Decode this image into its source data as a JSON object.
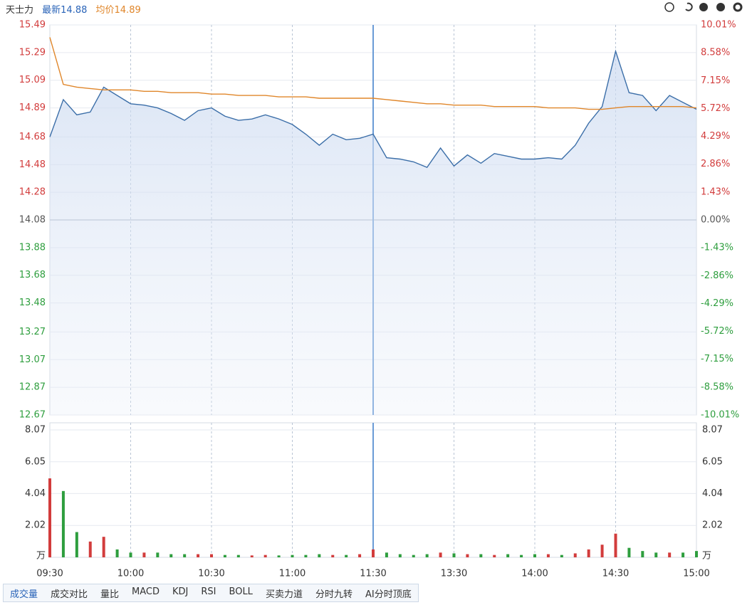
{
  "header": {
    "name": "天士力",
    "latest": "最新14.88",
    "average": "均价14.89"
  },
  "tabs": [
    "成交量",
    "成交对比",
    "量比",
    "MACD",
    "KDJ",
    "RSI",
    "BOLL",
    "买卖力道",
    "分时九转",
    "AI分时顶底"
  ],
  "chart_data": {
    "type": "line",
    "categories": [
      "09:30",
      null,
      null,
      null,
      null,
      null,
      "10:00",
      null,
      null,
      null,
      null,
      null,
      "10:30",
      null,
      null,
      null,
      null,
      null,
      "11:00",
      null,
      null,
      null,
      null,
      null,
      "11:30",
      null,
      null,
      null,
      null,
      null,
      "13:30",
      null,
      null,
      null,
      null,
      null,
      "14:00",
      null,
      null,
      null,
      null,
      null,
      "14:30",
      null,
      null,
      null,
      null,
      null,
      "15:00"
    ],
    "series": [
      {
        "name": "最新",
        "color": "#3b6ea8",
        "values": [
          14.68,
          14.95,
          14.84,
          14.86,
          15.04,
          14.98,
          14.92,
          14.91,
          14.89,
          14.85,
          14.8,
          14.87,
          14.89,
          14.83,
          14.8,
          14.81,
          14.84,
          14.81,
          14.77,
          14.7,
          14.62,
          14.7,
          14.66,
          14.67,
          14.7,
          14.53,
          14.52,
          14.5,
          14.46,
          14.6,
          14.47,
          14.55,
          14.49,
          14.56,
          14.54,
          14.52,
          14.52,
          14.53,
          14.52,
          14.62,
          14.78,
          14.9,
          15.3,
          15.0,
          14.98,
          14.87,
          14.98,
          14.93,
          14.88
        ]
      },
      {
        "name": "均价",
        "color": "#e0862a",
        "values": [
          15.4,
          15.06,
          15.04,
          15.03,
          15.02,
          15.02,
          15.02,
          15.01,
          15.01,
          15.0,
          15.0,
          15.0,
          14.99,
          14.99,
          14.98,
          14.98,
          14.98,
          14.97,
          14.97,
          14.97,
          14.96,
          14.96,
          14.96,
          14.96,
          14.96,
          14.95,
          14.94,
          14.93,
          14.92,
          14.92,
          14.91,
          14.91,
          14.91,
          14.9,
          14.9,
          14.9,
          14.9,
          14.89,
          14.89,
          14.89,
          14.88,
          14.88,
          14.89,
          14.9,
          14.9,
          14.9,
          14.9,
          14.9,
          14.89
        ]
      }
    ],
    "ylim": [
      12.67,
      15.49
    ],
    "yticks": [
      15.49,
      15.29,
      15.09,
      14.89,
      14.68,
      14.48,
      14.28,
      14.08,
      13.88,
      13.68,
      13.48,
      13.27,
      13.07,
      12.87,
      12.67
    ],
    "y2lim": [
      -10.01,
      10.01
    ],
    "y2ticks": [
      {
        "value": 10.01,
        "label": "10.01%"
      },
      {
        "value": 8.58,
        "label": "8.58%"
      },
      {
        "value": 7.15,
        "label": "7.15%"
      },
      {
        "value": 5.72,
        "label": "5.72%"
      },
      {
        "value": 4.29,
        "label": "4.29%"
      },
      {
        "value": 2.86,
        "label": "2.86%"
      },
      {
        "value": 1.43,
        "label": "1.43%"
      },
      {
        "value": 0,
        "label": "0.00%"
      },
      {
        "value": -1.43,
        "label": "-1.43%"
      },
      {
        "value": -2.86,
        "label": "-2.86%"
      },
      {
        "value": -4.29,
        "label": "-4.29%"
      },
      {
        "value": -5.72,
        "label": "-5.72%"
      },
      {
        "value": -7.15,
        "label": "-7.15%"
      },
      {
        "value": -8.58,
        "label": "-8.58%"
      },
      {
        "value": -10.01,
        "label": "-10.01%"
      }
    ],
    "volume": {
      "unit": "万",
      "ylim": [
        0,
        8.07
      ],
      "yticks": [
        2.02,
        4.04,
        6.05,
        8.07
      ],
      "values": [
        5.0,
        4.2,
        1.6,
        1.0,
        1.3,
        0.5,
        0.3,
        0.3,
        0.3,
        0.2,
        0.2,
        0.2,
        0.2,
        0.15,
        0.15,
        0.12,
        0.15,
        0.12,
        0.15,
        0.15,
        0.2,
        0.15,
        0.15,
        0.2,
        0.5,
        0.3,
        0.2,
        0.15,
        0.2,
        0.3,
        0.25,
        0.2,
        0.2,
        0.15,
        0.2,
        0.15,
        0.2,
        0.2,
        0.15,
        0.25,
        0.5,
        0.8,
        1.5,
        0.6,
        0.4,
        0.3,
        0.3,
        0.3,
        0.4
      ],
      "colors": [
        "#d23c3c",
        "#2e9e3e",
        "#2e9e3e",
        "#d23c3c",
        "#d23c3c",
        "#2e9e3e",
        "#2e9e3e",
        "#d23c3c",
        "#2e9e3e",
        "#2e9e3e",
        "#2e9e3e",
        "#d23c3c",
        "#d23c3c",
        "#2e9e3e",
        "#2e9e3e",
        "#d23c3c",
        "#d23c3c",
        "#2e9e3e",
        "#2e9e3e",
        "#2e9e3e",
        "#2e9e3e",
        "#d23c3c",
        "#2e9e3e",
        "#d23c3c",
        "#d23c3c",
        "#2e9e3e",
        "#2e9e3e",
        "#2e9e3e",
        "#2e9e3e",
        "#d23c3c",
        "#2e9e3e",
        "#d23c3c",
        "#2e9e3e",
        "#d23c3c",
        "#2e9e3e",
        "#2e9e3e",
        "#2e9e3e",
        "#d23c3c",
        "#2e9e3e",
        "#d23c3c",
        "#d23c3c",
        "#d23c3c",
        "#d23c3c",
        "#2e9e3e",
        "#2e9e3e",
        "#2e9e3e",
        "#d23c3c",
        "#2e9e3e",
        "#2e9e3e"
      ]
    }
  }
}
